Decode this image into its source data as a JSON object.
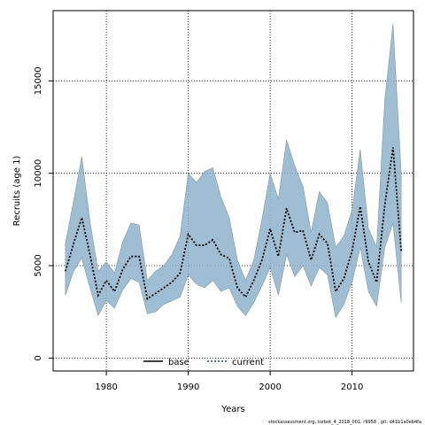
{
  "chart_data": {
    "type": "area",
    "xlabel": "Years",
    "ylabel": "Recruits (age 1)",
    "xlim": [
      1973.5,
      2017.5
    ],
    "ylim": [
      -700,
      18800
    ],
    "x_ticks": [
      1980,
      1990,
      2000,
      2010
    ],
    "y_ticks": [
      0,
      5000,
      10000,
      15000
    ],
    "grid": "dotted",
    "legend_position": "bottom-center",
    "legend": [
      {
        "name": "base",
        "style": "solid",
        "color": "#000000"
      },
      {
        "name": "current",
        "style": "dotted",
        "color": "#1f4e79"
      }
    ],
    "band_color": "#8fb3cb",
    "x": [
      1975,
      1976,
      1977,
      1978,
      1979,
      1980,
      1981,
      1982,
      1983,
      1984,
      1985,
      1986,
      1987,
      1988,
      1989,
      1990,
      1991,
      1992,
      1993,
      1994,
      1995,
      1996,
      1997,
      1998,
      1999,
      2000,
      2001,
      2002,
      2003,
      2004,
      2005,
      2006,
      2007,
      2008,
      2009,
      2010,
      2011,
      2012,
      2013,
      2014,
      2015,
      2016
    ],
    "series": [
      {
        "name": "current",
        "values": [
          4700,
          6200,
          7600,
          5600,
          3400,
          4200,
          3600,
          4800,
          5500,
          5500,
          3200,
          3500,
          3800,
          4100,
          4600,
          6700,
          6100,
          6100,
          6400,
          5600,
          5400,
          3800,
          3300,
          4200,
          5300,
          7000,
          5500,
          8100,
          6800,
          6900,
          5300,
          6700,
          6200,
          3600,
          4300,
          5800,
          8200,
          5200,
          4100,
          8300,
          11400,
          5800
        ],
        "lower": [
          3400,
          4700,
          5400,
          3800,
          2300,
          3100,
          2700,
          3700,
          4300,
          4100,
          2400,
          2500,
          2900,
          3100,
          3300,
          4500,
          4000,
          3800,
          4200,
          3600,
          3800,
          2800,
          2300,
          3000,
          3900,
          4900,
          3400,
          5600,
          4400,
          5000,
          3900,
          4900,
          4500,
          2200,
          2900,
          4100,
          6000,
          3600,
          2800,
          6000,
          7300,
          3000
        ],
        "upper": [
          6200,
          8500,
          10900,
          7400,
          4700,
          5200,
          4600,
          6300,
          7300,
          7200,
          4200,
          4700,
          5000,
          5600,
          6600,
          10000,
          9500,
          10100,
          10300,
          8700,
          7600,
          5300,
          4200,
          5300,
          7500,
          10000,
          8600,
          11800,
          10400,
          9300,
          6800,
          9000,
          8400,
          6000,
          6600,
          8000,
          11300,
          7000,
          6000,
          14000,
          18100,
          10000
        ]
      }
    ]
  },
  "footnote": "stockassessment.org, turbot_4_2018_001, r9958 , git: d41b1a0eb4fa"
}
